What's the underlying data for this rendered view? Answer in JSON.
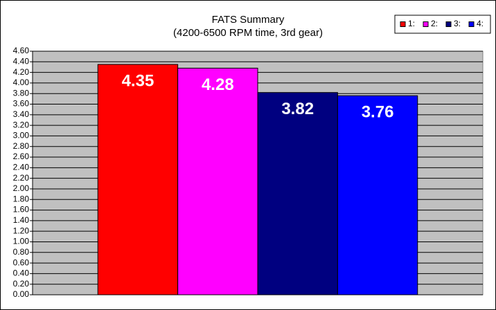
{
  "chart_data": {
    "type": "bar",
    "title": "FATS Summary",
    "subtitle": "(4200-6500 RPM time, 3rd gear)",
    "categories": [
      null
    ],
    "series": [
      {
        "name": "1:",
        "color": "#ff0000",
        "values": [
          4.35
        ]
      },
      {
        "name": "2:",
        "color": "#ff00ff",
        "values": [
          4.28
        ]
      },
      {
        "name": "3:",
        "color": "#000080",
        "values": [
          3.82
        ]
      },
      {
        "name": "4:",
        "color": "#0000ff",
        "values": [
          3.76
        ]
      }
    ],
    "ylim": [
      0,
      4.6
    ],
    "yticks": [
      {
        "value": 0,
        "label": "0.00"
      },
      {
        "value": 0.2,
        "label": "0.20"
      },
      {
        "value": 0.4,
        "label": "0.40"
      },
      {
        "value": 0.6,
        "label": "0.60"
      },
      {
        "value": 0.8,
        "label": "0.80"
      },
      {
        "value": 1,
        "label": "1.00"
      },
      {
        "value": 1.2,
        "label": "1.20"
      },
      {
        "value": 1.4,
        "label": "1.40"
      },
      {
        "value": 1.6,
        "label": "1.60"
      },
      {
        "value": 1.8,
        "label": "1.80"
      },
      {
        "value": 2,
        "label": "2.00"
      },
      {
        "value": 2.2,
        "label": "2.20"
      },
      {
        "value": 2.4,
        "label": "2.40"
      },
      {
        "value": 2.6,
        "label": "2.60"
      },
      {
        "value": 2.8,
        "label": "2.80"
      },
      {
        "value": 3,
        "label": "3.00"
      },
      {
        "value": 3.2,
        "label": "3.20"
      },
      {
        "value": 3.4,
        "label": "3.40"
      },
      {
        "value": 3.6,
        "label": "3.60"
      },
      {
        "value": 3.8,
        "label": "3.80"
      },
      {
        "value": 4,
        "label": "4.00"
      },
      {
        "value": 4.2,
        "label": "4.20"
      },
      {
        "value": 4.4,
        "label": "4.40"
      },
      {
        "value": 4.6,
        "label": "4.60"
      }
    ],
    "grid": true,
    "plot_background": "#c0c0c0",
    "legend": "top-right"
  }
}
